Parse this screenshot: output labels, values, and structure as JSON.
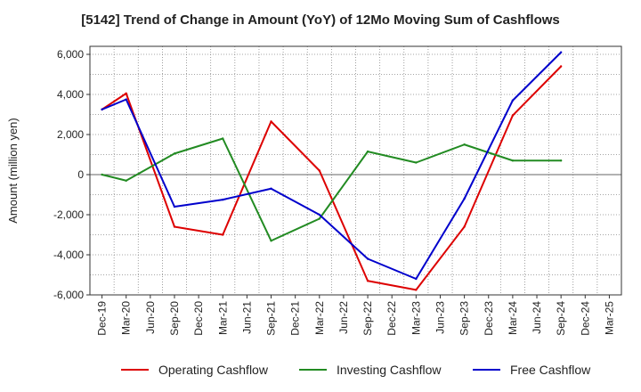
{
  "chart_data": {
    "type": "line",
    "title": "[5142]  Trend of Change in Amount (YoY) of 12Mo Moving Sum of Cashflows",
    "xlabel": "",
    "ylabel": "Amount (million yen)",
    "ylim": [
      -6000,
      6400
    ],
    "yticks": [
      6000,
      4000,
      2000,
      0,
      -2000,
      -4000,
      -6000
    ],
    "ytick_labels": [
      "6,000",
      "4,000",
      "2,000",
      "0",
      "-2,000",
      "-4,000",
      "-6,000"
    ],
    "categories": [
      "Dec-19",
      "Mar-20",
      "Jun-20",
      "Sep-20",
      "Dec-20",
      "Mar-21",
      "Jun-21",
      "Sep-21",
      "Dec-21",
      "Mar-22",
      "Jun-22",
      "Sep-22",
      "Dec-22",
      "Mar-23",
      "Jun-23",
      "Sep-23",
      "Dec-23",
      "Mar-24",
      "Jun-24",
      "Sep-24",
      "Dec-24",
      "Mar-25"
    ],
    "grid": true,
    "legend_position": "bottom",
    "series": [
      {
        "name": "Operating Cashflow",
        "color": "#dd0000",
        "values": [
          3250,
          4050,
          null,
          -2600,
          null,
          -3000,
          null,
          2650,
          null,
          200,
          null,
          -5300,
          null,
          -5750,
          null,
          -2600,
          null,
          2950,
          null,
          5400,
          null,
          null
        ]
      },
      {
        "name": "Investing Cashflow",
        "color": "#228b22",
        "values": [
          0,
          -300,
          null,
          1050,
          null,
          1800,
          null,
          -3300,
          null,
          -2200,
          null,
          1150,
          null,
          600,
          null,
          1500,
          null,
          700,
          null,
          700,
          null,
          null
        ]
      },
      {
        "name": "Free Cashflow",
        "color": "#0000cc",
        "values": [
          3250,
          3750,
          null,
          -1600,
          null,
          -1250,
          null,
          -700,
          null,
          -2000,
          null,
          -4200,
          null,
          -5200,
          null,
          -1200,
          null,
          3700,
          null,
          6100,
          null,
          null
        ]
      }
    ]
  }
}
